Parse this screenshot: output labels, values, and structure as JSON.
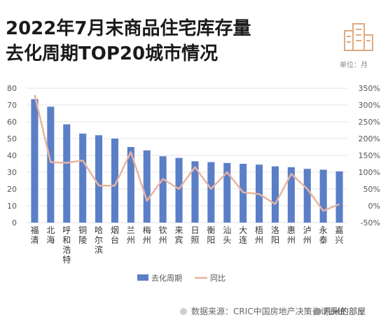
{
  "title": {
    "line1": "2022年7月末商品住宅库存量",
    "line2": "去化周期TOP20城市情况"
  },
  "unit_label": "单位：月",
  "source": "数据来源：CRIC中国房地产决策咨询系统",
  "wechat": "凡米的部屋",
  "logo_icon": "building-icon",
  "chart_data": {
    "type": "bar",
    "categories": [
      "福清",
      "北海",
      "呼和浩特",
      "铜陵",
      "哈尔滨",
      "烟台",
      "兰州",
      "梅州",
      "钦州",
      "来宾",
      "日照",
      "衡阳",
      "汕头",
      "大连",
      "梧州",
      "洛阳",
      "惠州",
      "泸州",
      "永泰",
      "嘉兴"
    ],
    "series": [
      {
        "name": "去化周期",
        "type": "bar",
        "axis": "left",
        "color": "#5b7fc7",
        "values": [
          73.5,
          69,
          58.5,
          53,
          52,
          50,
          45,
          43,
          39.5,
          38.5,
          36.5,
          36,
          35.5,
          35,
          34.5,
          33.5,
          33,
          32,
          31.5,
          30.5
        ]
      },
      {
        "name": "同比",
        "type": "line",
        "axis": "right",
        "color": "#e8b4a0",
        "values": [
          330,
          130,
          128,
          135,
          60,
          60,
          160,
          15,
          80,
          50,
          115,
          50,
          100,
          40,
          35,
          5,
          95,
          50,
          -15,
          5
        ]
      }
    ],
    "y_left": {
      "min": 0,
      "max": 80,
      "ticks": [
        "0",
        "10",
        "20",
        "30",
        "40",
        "50",
        "60",
        "70",
        "80"
      ]
    },
    "y_right": {
      "min": -50,
      "max": 350,
      "ticks": [
        "-50%",
        "0%",
        "50%",
        "100%",
        "150%",
        "200%",
        "250%",
        "300%",
        "350%"
      ]
    },
    "grid": true,
    "legend_position": "bottom-center"
  }
}
